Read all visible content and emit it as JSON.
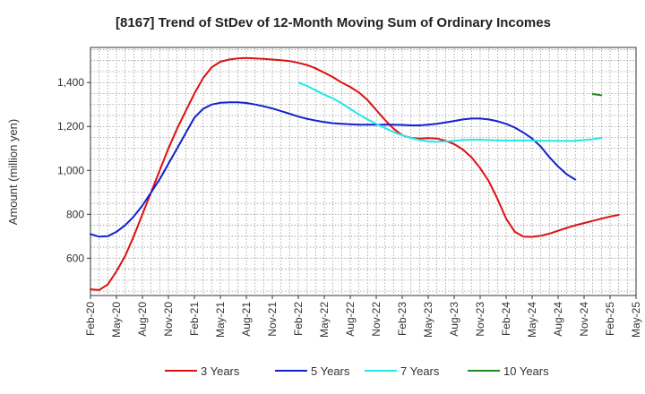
{
  "chart_data": {
    "type": "line",
    "title": "[8167]  Trend of StDev of 12-Month Moving Sum of Ordinary Incomes",
    "xlabel": "",
    "ylabel": "Amount (million yen)",
    "ylim": [
      430,
      1560
    ],
    "yticks": [
      600,
      800,
      1000,
      1200,
      1400
    ],
    "ytick_labels": [
      "600",
      "800",
      "1,000",
      "1,200",
      "1,400"
    ],
    "x_start": "Feb-20",
    "xtick_labels": [
      "Feb-20",
      "May-20",
      "Aug-20",
      "Nov-20",
      "Feb-21",
      "May-21",
      "Aug-21",
      "Nov-21",
      "Feb-22",
      "May-22",
      "Aug-22",
      "Nov-22",
      "Feb-23",
      "May-23",
      "Aug-23",
      "Nov-23",
      "Feb-24",
      "May-24",
      "Aug-24",
      "Nov-24",
      "Feb-25",
      "May-25"
    ],
    "grid": true,
    "legend_position": "bottom",
    "series": [
      {
        "name": "3 Years",
        "color": "#dd1111",
        "start_index": 0,
        "values": [
          458,
          455,
          480,
          540,
          610,
          700,
          800,
          900,
          1000,
          1100,
          1190,
          1270,
          1350,
          1420,
          1470,
          1495,
          1505,
          1510,
          1512,
          1510,
          1508,
          1505,
          1502,
          1498,
          1490,
          1480,
          1465,
          1445,
          1425,
          1400,
          1380,
          1355,
          1320,
          1275,
          1230,
          1190,
          1160,
          1148,
          1145,
          1147,
          1145,
          1135,
          1120,
          1095,
          1060,
          1010,
          950,
          870,
          780,
          720,
          698,
          697,
          702,
          712,
          725,
          738,
          750,
          760,
          770,
          780,
          790,
          797
        ]
      },
      {
        "name": "5 Years",
        "color": "#1122cc",
        "start_index": 0,
        "values": [
          710,
          698,
          700,
          720,
          750,
          790,
          840,
          900,
          960,
          1030,
          1100,
          1170,
          1240,
          1280,
          1300,
          1308,
          1310,
          1310,
          1307,
          1300,
          1292,
          1282,
          1270,
          1258,
          1245,
          1235,
          1227,
          1220,
          1215,
          1212,
          1210,
          1208,
          1208,
          1208,
          1208,
          1208,
          1207,
          1205,
          1205,
          1208,
          1212,
          1218,
          1225,
          1232,
          1236,
          1236,
          1232,
          1224,
          1212,
          1195,
          1172,
          1145,
          1108,
          1060,
          1018,
          982,
          958
        ]
      },
      {
        "name": "7 Years",
        "color": "#22e8e8",
        "start_index": 24,
        "values": [
          1400,
          1385,
          1365,
          1345,
          1328,
          1305,
          1280,
          1255,
          1232,
          1212,
          1193,
          1175,
          1160,
          1148,
          1138,
          1132,
          1130,
          1132,
          1135,
          1138,
          1140,
          1140,
          1138,
          1137,
          1136,
          1136,
          1136,
          1136,
          1135,
          1135,
          1134,
          1134,
          1135,
          1138,
          1142,
          1148
        ]
      },
      {
        "name": "10 Years",
        "color": "#228822",
        "start_index": 58,
        "values": [
          1348,
          1342
        ]
      }
    ]
  }
}
